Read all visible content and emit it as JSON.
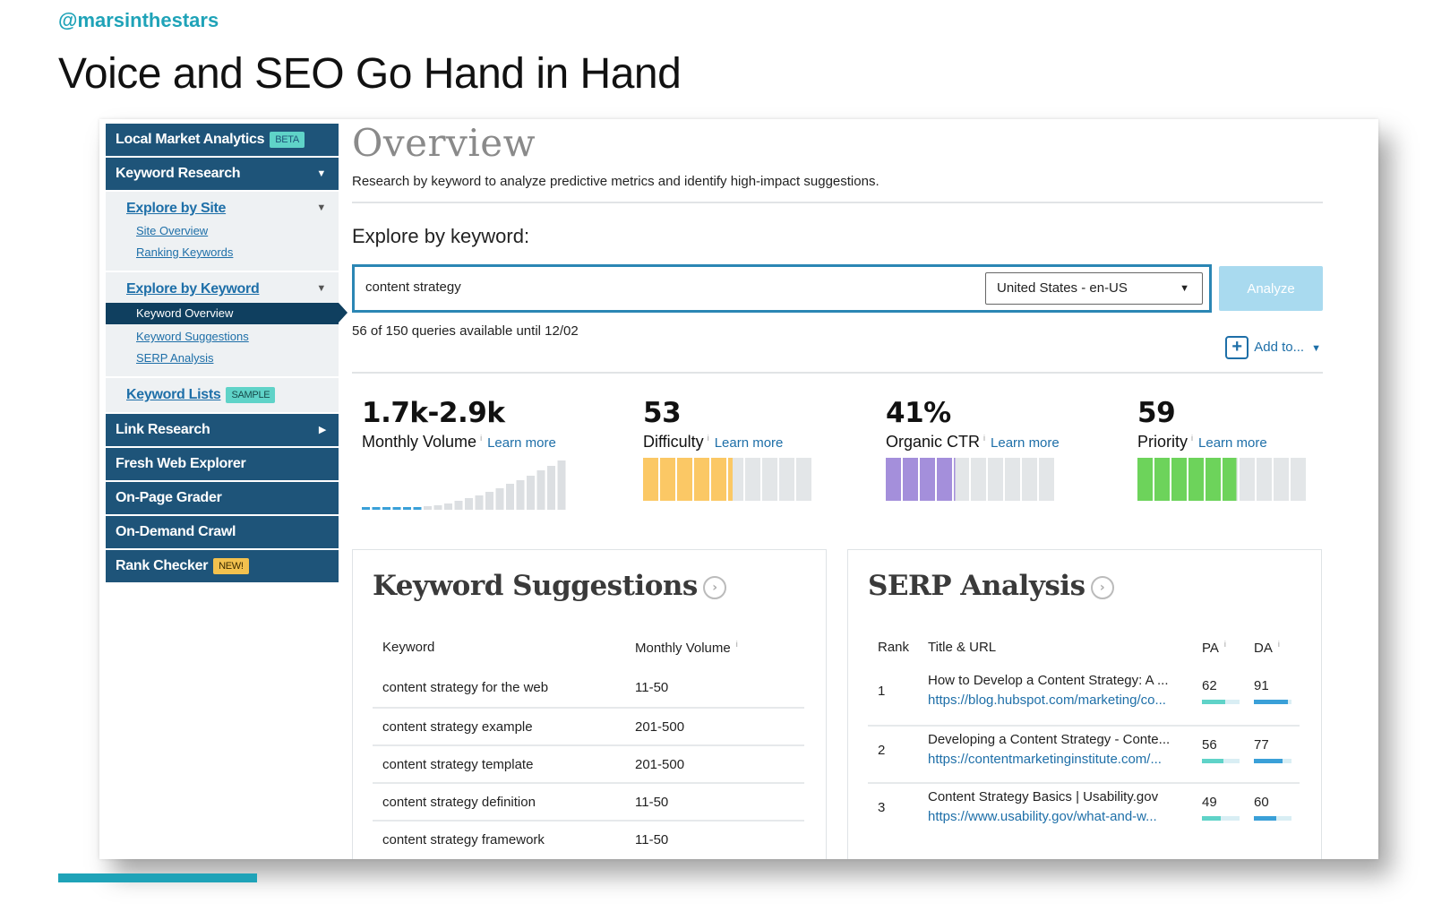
{
  "slide": {
    "handle": "@marsinthestars",
    "title": "Voice and SEO Go Hand in Hand"
  },
  "sidebar": {
    "local_market": {
      "label": "Local Market Analytics",
      "badge": "BETA"
    },
    "keyword_research": {
      "label": "Keyword Research"
    },
    "explore_by_site": {
      "label": "Explore by Site",
      "items": [
        "Site Overview",
        "Ranking Keywords"
      ]
    },
    "explore_by_keyword": {
      "label": "Explore by Keyword",
      "active": "Keyword Overview",
      "items": [
        "Keyword Suggestions",
        "SERP Analysis"
      ]
    },
    "keyword_lists": {
      "label": "Keyword Lists",
      "badge": "SAMPLE"
    },
    "link_research": "Link Research",
    "fresh_web_explorer": "Fresh Web Explorer",
    "on_page_grader": "On-Page Grader",
    "on_demand_crawl": "On-Demand Crawl",
    "rank_checker": {
      "label": "Rank Checker",
      "badge": "NEW!"
    }
  },
  "overview": {
    "title": "Overview",
    "description": "Research by keyword to analyze predictive metrics and identify high-impact suggestions.",
    "explore_label": "Explore by keyword:",
    "search_value": "content strategy",
    "locale": "United States - en-US",
    "analyze_label": "Analyze",
    "queries_text": "56 of 150 queries available until 12/02",
    "add_to_label": "Add to..."
  },
  "metrics": {
    "learn_more": "Learn more",
    "monthly_volume": {
      "value": "1.7k-2.9k",
      "label": "Monthly Volume"
    },
    "difficulty": {
      "value": "53",
      "label": "Difficulty",
      "score": 53,
      "color": "#fbc865"
    },
    "organic_ctr": {
      "value": "41%",
      "label": "Organic CTR",
      "score": 41,
      "color": "#a48fdb"
    },
    "priority": {
      "value": "59",
      "label": "Priority",
      "score": 59,
      "color": "#6dd35b"
    },
    "empty_color": "#e3e6e8"
  },
  "keyword_suggestions": {
    "title": "Keyword Suggestions",
    "col_keyword": "Keyword",
    "col_volume": "Monthly Volume",
    "rows": [
      {
        "keyword": "content strategy for the web",
        "volume": "11-50"
      },
      {
        "keyword": "content strategy example",
        "volume": "201-500"
      },
      {
        "keyword": "content strategy template",
        "volume": "201-500"
      },
      {
        "keyword": "content strategy definition",
        "volume": "11-50"
      },
      {
        "keyword": "content strategy framework",
        "volume": "11-50"
      }
    ]
  },
  "serp_analysis": {
    "title": "SERP Analysis",
    "col_rank": "Rank",
    "col_title": "Title & URL",
    "col_pa": "PA",
    "col_da": "DA",
    "pa_color": "#5fd3c8",
    "da_color": "#3aa0d8",
    "rows": [
      {
        "rank": "1",
        "title": "How to Develop a Content Strategy: A ...",
        "url": "https://blog.hubspot.com/marketing/co...",
        "pa": "62",
        "da": "91",
        "pa_score": 62,
        "da_score": 91
      },
      {
        "rank": "2",
        "title": "Developing a Content Strategy - Conte...",
        "url": "https://contentmarketinginstitute.com/...",
        "pa": "56",
        "da": "77",
        "pa_score": 56,
        "da_score": 77
      },
      {
        "rank": "3",
        "title": "Content Strategy Basics | Usability.gov",
        "url": "https://www.usability.gov/what-and-w...",
        "pa": "49",
        "da": "60",
        "pa_score": 49,
        "da_score": 60
      }
    ]
  }
}
